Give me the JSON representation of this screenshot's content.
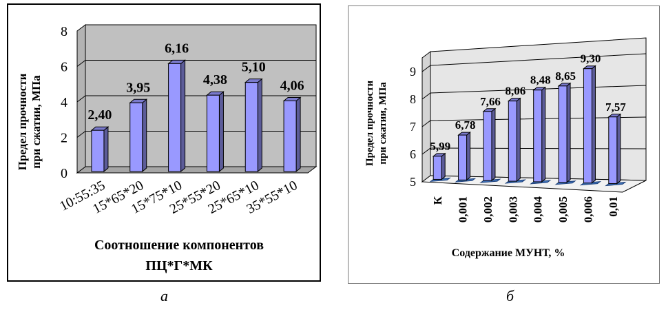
{
  "chart_data": [
    {
      "type": "bar",
      "xlabel": "Соотношение компонентов",
      "xlabel2": "ПЦ*Г*МК",
      "ylabel": "Предел прочности",
      "ylabel2": "при сжатии, МПа",
      "ylim": [
        0,
        8
      ],
      "yticks": [
        "0",
        "2",
        "4",
        "6",
        "8"
      ],
      "categories": [
        "10:55:35",
        "15*65*20",
        "15*75*10",
        "25*55*20",
        "25*65*10",
        "35*55*10"
      ],
      "values": [
        2.4,
        3.95,
        6.16,
        4.38,
        5.1,
        4.06
      ],
      "labels": [
        "2,40",
        "3,95",
        "6,16",
        "4,38",
        "5,10",
        "4,06"
      ],
      "grid": true,
      "bar_color": "#9999ff",
      "wall_color": "#c0c0c0"
    },
    {
      "type": "bar",
      "xlabel": "Содержание МУНТ, %",
      "ylabel": "Предел прочности",
      "ylabel2": "при сжатии, МПа",
      "ylim": [
        5,
        9.5
      ],
      "yticks": [
        "5",
        "6",
        "7",
        "8",
        "9"
      ],
      "categories": [
        "К",
        "0,001",
        "0,002",
        "0,003",
        "0,004",
        "0,005",
        "0,006",
        "0,01"
      ],
      "values": [
        5.99,
        6.78,
        7.66,
        8.06,
        8.48,
        8.65,
        9.3,
        7.57
      ],
      "labels": [
        "5,99",
        "6,78",
        "7,66",
        "8,06",
        "8,48",
        "8,65",
        "9,30",
        "7,57"
      ],
      "grid": true,
      "bar_color": "#9999ff",
      "wall_color": "#e6e6e6"
    }
  ],
  "captions": {
    "a": "а",
    "b": "б"
  }
}
